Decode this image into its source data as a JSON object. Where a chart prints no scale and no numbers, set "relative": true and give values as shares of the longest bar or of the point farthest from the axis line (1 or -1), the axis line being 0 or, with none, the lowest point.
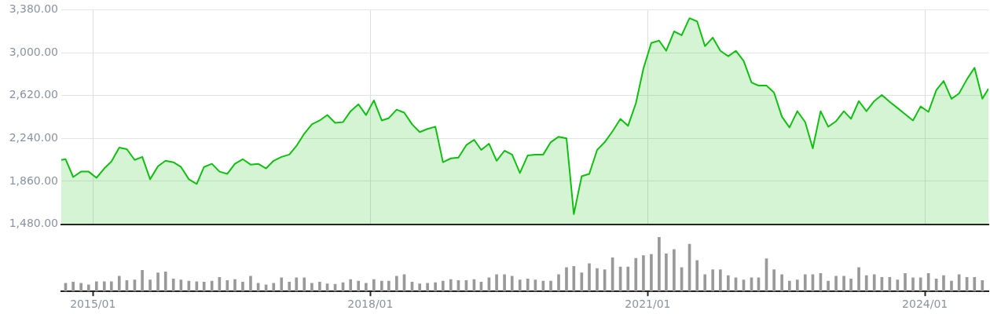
{
  "chart_data": [
    {
      "type": "area",
      "xlim": [
        "2014-08-29",
        "2024-09-08"
      ],
      "ylim": [
        1480,
        3380
      ],
      "yticks": [
        {
          "value": 1480,
          "label": "1,480.00"
        },
        {
          "value": 1860,
          "label": "1,860.00"
        },
        {
          "value": 2240,
          "label": "2,240.00"
        },
        {
          "value": 2620,
          "label": "2,620.00"
        },
        {
          "value": 3000,
          "label": "3,000.00"
        },
        {
          "value": 3380,
          "label": "3,380.00"
        }
      ],
      "grid": true,
      "tick_labels": "y",
      "x": [
        "2014-08-29",
        "2014-09-15",
        "2014-10-15",
        "2014-11-15",
        "2014-12-15",
        "2015-01-15",
        "2015-02-15",
        "2015-03-15",
        "2015-04-15",
        "2015-05-15",
        "2015-06-15",
        "2015-07-15",
        "2015-08-15",
        "2015-09-15",
        "2015-10-15",
        "2015-11-15",
        "2015-12-15",
        "2016-01-15",
        "2016-02-15",
        "2016-03-15",
        "2016-04-15",
        "2016-05-15",
        "2016-06-15",
        "2016-07-15",
        "2016-08-15",
        "2016-09-15",
        "2016-10-15",
        "2016-11-15",
        "2016-12-15",
        "2017-01-15",
        "2017-02-15",
        "2017-03-15",
        "2017-04-15",
        "2017-05-15",
        "2017-06-15",
        "2017-07-15",
        "2017-08-15",
        "2017-09-15",
        "2017-10-15",
        "2017-11-15",
        "2017-12-15",
        "2018-01-15",
        "2018-02-15",
        "2018-03-15",
        "2018-04-15",
        "2018-05-15",
        "2018-06-15",
        "2018-07-15",
        "2018-08-15",
        "2018-09-15",
        "2018-10-15",
        "2018-11-15",
        "2018-12-15",
        "2019-01-15",
        "2019-02-15",
        "2019-03-15",
        "2019-04-15",
        "2019-05-15",
        "2019-06-15",
        "2019-07-15",
        "2019-08-15",
        "2019-09-15",
        "2019-10-15",
        "2019-11-15",
        "2019-12-15",
        "2020-01-15",
        "2020-02-15",
        "2020-03-15",
        "2020-04-15",
        "2020-05-15",
        "2020-06-15",
        "2020-07-15",
        "2020-08-15",
        "2020-09-15",
        "2020-10-15",
        "2020-11-15",
        "2020-12-15",
        "2021-01-15",
        "2021-02-15",
        "2021-03-15",
        "2021-04-15",
        "2021-05-15",
        "2021-06-15",
        "2021-07-15",
        "2021-08-15",
        "2021-09-15",
        "2021-10-15",
        "2021-11-15",
        "2021-12-15",
        "2022-01-15",
        "2022-02-15",
        "2022-03-15",
        "2022-04-15",
        "2022-05-15",
        "2022-06-15",
        "2022-07-15",
        "2022-08-15",
        "2022-09-15",
        "2022-10-15",
        "2022-11-15",
        "2022-12-15",
        "2023-01-15",
        "2023-02-15",
        "2023-03-15",
        "2023-04-15",
        "2023-05-15",
        "2023-06-15",
        "2023-07-15",
        "2023-08-15",
        "2023-09-15",
        "2023-10-15",
        "2023-11-15",
        "2023-12-15",
        "2024-01-15",
        "2024-02-15",
        "2024-03-15",
        "2024-04-15",
        "2024-05-15",
        "2024-06-15",
        "2024-07-15",
        "2024-08-15",
        "2024-09-08"
      ],
      "series": [
        {
          "color": "#10c010",
          "values": [
            2050,
            2056,
            1898,
            1946,
            1946,
            1891,
            1974,
            2035,
            2159,
            2145,
            2049,
            2076,
            1878,
            1994,
            2042,
            2029,
            1987,
            1878,
            1837,
            1987,
            2015,
            1946,
            1926,
            2015,
            2056,
            2008,
            2015,
            1974,
            2042,
            2076,
            2097,
            2173,
            2282,
            2365,
            2399,
            2447,
            2378,
            2385,
            2481,
            2543,
            2447,
            2577,
            2399,
            2420,
            2495,
            2468,
            2365,
            2296,
            2324,
            2344,
            2029,
            2063,
            2070,
            2180,
            2228,
            2138,
            2193,
            2042,
            2131,
            2097,
            1933,
            2090,
            2097,
            2097,
            2207,
            2255,
            2241,
            1569,
            1905,
            1926,
            2138,
            2207,
            2303,
            2413,
            2351,
            2550,
            2859,
            3085,
            3106,
            3016,
            3188,
            3154,
            3305,
            3277,
            3058,
            3133,
            3016,
            2968,
            3016,
            2927,
            2735,
            2708,
            2708,
            2646,
            2433,
            2337,
            2481,
            2385,
            2152,
            2481,
            2344,
            2392,
            2481,
            2413,
            2571,
            2481,
            2571,
            2625,
            2564,
            2509,
            2454,
            2399,
            2523,
            2475,
            2667,
            2749,
            2591,
            2639,
            2763,
            2866,
            2591,
            2680
          ]
        }
      ]
    },
    {
      "type": "bar",
      "relative": true,
      "color": "#999999",
      "xlim": [
        "2014-08-29",
        "2024-09-08"
      ],
      "xticks": [
        {
          "value": "2015-01",
          "label": "2015/01"
        },
        {
          "value": "2018-01",
          "label": "2018/01"
        },
        {
          "value": "2021-01",
          "label": "2021/01"
        },
        {
          "value": "2024-01",
          "label": "2024/01"
        }
      ],
      "tick_labels": "x",
      "x": [
        "2014-09-15",
        "2014-10-15",
        "2014-11-15",
        "2014-12-15",
        "2015-01-15",
        "2015-02-15",
        "2015-03-15",
        "2015-04-15",
        "2015-05-15",
        "2015-06-15",
        "2015-07-15",
        "2015-08-15",
        "2015-09-15",
        "2015-10-15",
        "2015-11-15",
        "2015-12-15",
        "2016-01-15",
        "2016-02-15",
        "2016-03-15",
        "2016-04-15",
        "2016-05-15",
        "2016-06-15",
        "2016-07-15",
        "2016-08-15",
        "2016-09-15",
        "2016-10-15",
        "2016-11-15",
        "2016-12-15",
        "2017-01-15",
        "2017-02-15",
        "2017-03-15",
        "2017-04-15",
        "2017-05-15",
        "2017-06-15",
        "2017-07-15",
        "2017-08-15",
        "2017-09-15",
        "2017-10-15",
        "2017-11-15",
        "2017-12-15",
        "2018-01-15",
        "2018-02-15",
        "2018-03-15",
        "2018-04-15",
        "2018-05-15",
        "2018-06-15",
        "2018-07-15",
        "2018-08-15",
        "2018-09-15",
        "2018-10-15",
        "2018-11-15",
        "2018-12-15",
        "2019-01-15",
        "2019-02-15",
        "2019-03-15",
        "2019-04-15",
        "2019-05-15",
        "2019-06-15",
        "2019-07-15",
        "2019-08-15",
        "2019-09-15",
        "2019-10-15",
        "2019-11-15",
        "2019-12-15",
        "2020-01-15",
        "2020-02-15",
        "2020-03-15",
        "2020-04-15",
        "2020-05-15",
        "2020-06-15",
        "2020-07-15",
        "2020-08-15",
        "2020-09-15",
        "2020-10-15",
        "2020-11-15",
        "2020-12-15",
        "2021-01-15",
        "2021-02-15",
        "2021-03-15",
        "2021-04-15",
        "2021-05-15",
        "2021-06-15",
        "2021-07-15",
        "2021-08-15",
        "2021-09-15",
        "2021-10-15",
        "2021-11-15",
        "2021-12-15",
        "2022-01-15",
        "2022-02-15",
        "2022-03-15",
        "2022-04-15",
        "2022-05-15",
        "2022-06-15",
        "2022-07-15",
        "2022-08-15",
        "2022-09-15",
        "2022-10-15",
        "2022-11-15",
        "2022-12-15",
        "2023-01-15",
        "2023-02-15",
        "2023-03-15",
        "2023-04-15",
        "2023-05-15",
        "2023-06-15",
        "2023-07-15",
        "2023-08-15",
        "2023-09-15",
        "2023-10-15",
        "2023-11-15",
        "2023-12-15",
        "2024-01-15",
        "2024-02-15",
        "2024-03-15",
        "2024-04-15",
        "2024-05-15",
        "2024-06-15",
        "2024-07-15",
        "2024-08-15"
      ],
      "values": [
        0.15,
        0.17,
        0.15,
        0.12,
        0.18,
        0.18,
        0.18,
        0.28,
        0.2,
        0.21,
        0.39,
        0.21,
        0.34,
        0.36,
        0.23,
        0.21,
        0.19,
        0.18,
        0.17,
        0.19,
        0.26,
        0.2,
        0.22,
        0.17,
        0.28,
        0.15,
        0.12,
        0.15,
        0.25,
        0.17,
        0.25,
        0.25,
        0.15,
        0.17,
        0.14,
        0.13,
        0.16,
        0.22,
        0.19,
        0.15,
        0.22,
        0.19,
        0.19,
        0.28,
        0.31,
        0.17,
        0.14,
        0.15,
        0.16,
        0.19,
        0.22,
        0.2,
        0.2,
        0.22,
        0.17,
        0.25,
        0.31,
        0.31,
        0.28,
        0.21,
        0.23,
        0.21,
        0.19,
        0.19,
        0.31,
        0.44,
        0.46,
        0.34,
        0.51,
        0.42,
        0.4,
        0.62,
        0.45,
        0.45,
        0.61,
        0.66,
        0.68,
        1,
        0.69,
        0.77,
        0.44,
        0.87,
        0.57,
        0.31,
        0.4,
        0.4,
        0.29,
        0.25,
        0.21,
        0.25,
        0.25,
        0.6,
        0.4,
        0.31,
        0.19,
        0.21,
        0.31,
        0.31,
        0.33,
        0.19,
        0.28,
        0.28,
        0.23,
        0.44,
        0.29,
        0.31,
        0.26,
        0.26,
        0.21,
        0.33,
        0.25,
        0.25,
        0.33,
        0.23,
        0.29,
        0.19,
        0.31,
        0.26,
        0.26,
        0.2
      ]
    }
  ]
}
